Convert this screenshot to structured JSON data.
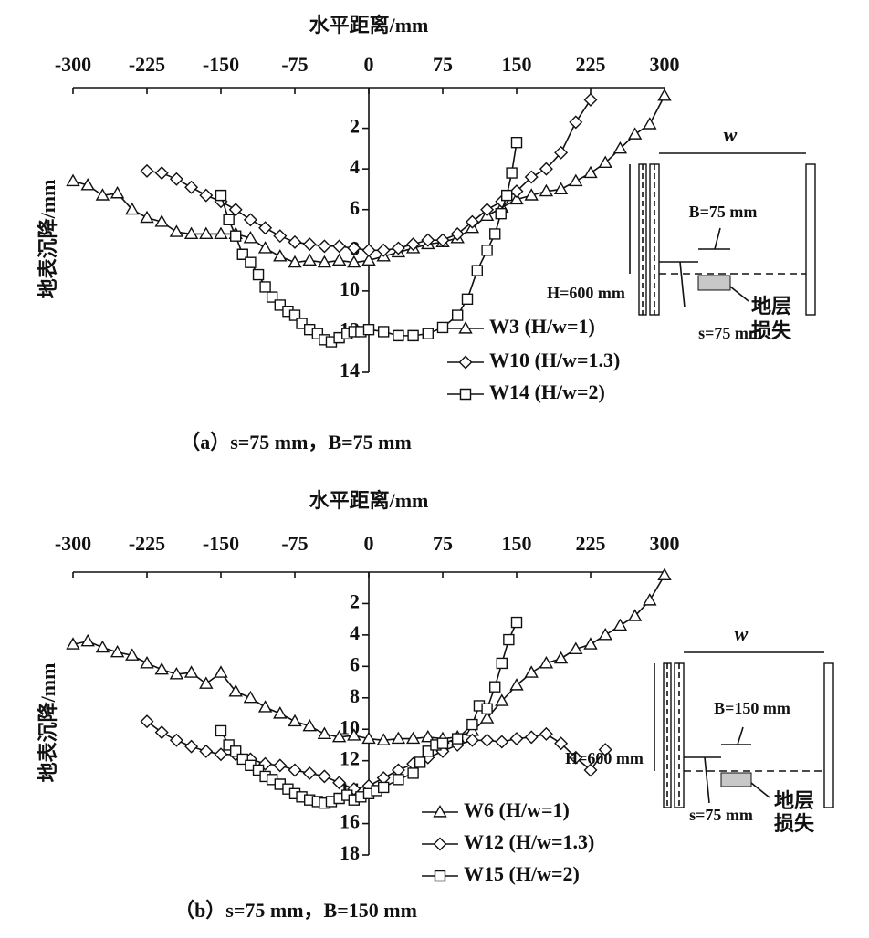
{
  "chart_data": [
    {
      "type": "line",
      "title": "水平距离/mm",
      "ylabel": "地表沉降/mm",
      "caption": "（a）s=75 mm，B=75 mm",
      "xlim": [
        -300,
        300
      ],
      "xticks": [
        -300,
        -225,
        -150,
        -75,
        0,
        75,
        150,
        225,
        300
      ],
      "ylim": [
        0,
        14
      ],
      "yticks": [
        2,
        4,
        6,
        8,
        10,
        12,
        14
      ],
      "y_inverted": true,
      "annotations": [
        "w",
        "B=75 mm",
        "H=600 mm",
        "s=75 mm",
        "地层",
        "损失"
      ],
      "series": [
        {
          "name": "W3 (H/w=1)",
          "color": "#111111",
          "marker": "triangle",
          "x": [
            -300,
            -285,
            -270,
            -255,
            -240,
            -225,
            -210,
            -195,
            -180,
            -165,
            -150,
            -135,
            -120,
            -105,
            -90,
            -75,
            -60,
            -45,
            -30,
            -15,
            0,
            15,
            30,
            45,
            60,
            75,
            90,
            105,
            120,
            135,
            150,
            165,
            180,
            195,
            210,
            225,
            240,
            255,
            270,
            285,
            300
          ],
          "values": [
            4.6,
            4.8,
            5.3,
            5.2,
            6.0,
            6.4,
            6.6,
            7.1,
            7.2,
            7.2,
            7.2,
            7.2,
            7.4,
            7.9,
            8.3,
            8.6,
            8.5,
            8.6,
            8.5,
            8.6,
            8.5,
            8.3,
            8.1,
            7.9,
            7.7,
            7.6,
            7.4,
            6.9,
            6.3,
            5.9,
            5.5,
            5.3,
            5.1,
            5.0,
            4.6,
            4.2,
            3.7,
            3.0,
            2.3,
            1.8,
            0.4
          ]
        },
        {
          "name": "W10 (H/w=1.3)",
          "color": "#111111",
          "marker": "diamond",
          "x": [
            -225,
            -210,
            -195,
            -180,
            -165,
            -150,
            -135,
            -120,
            -105,
            -90,
            -75,
            -60,
            -45,
            -30,
            -15,
            0,
            15,
            30,
            45,
            60,
            75,
            90,
            105,
            120,
            135,
            150,
            165,
            180,
            195,
            210,
            225
          ],
          "values": [
            4.1,
            4.2,
            4.5,
            4.9,
            5.3,
            5.6,
            6.0,
            6.5,
            6.9,
            7.3,
            7.6,
            7.7,
            7.8,
            7.8,
            7.9,
            8.0,
            8.0,
            7.9,
            7.7,
            7.5,
            7.5,
            7.2,
            6.6,
            6.0,
            5.6,
            5.1,
            4.4,
            4.0,
            3.2,
            1.7,
            0.6
          ]
        },
        {
          "name": "W14 (H/w=2)",
          "color": "#111111",
          "marker": "square",
          "x": [
            -150,
            -142,
            -135,
            -128,
            -120,
            -112,
            -105,
            -98,
            -90,
            -82,
            -75,
            -68,
            -60,
            -52,
            -45,
            -38,
            -30,
            -22,
            -15,
            -8,
            0,
            15,
            30,
            45,
            60,
            75,
            90,
            100,
            110,
            120,
            128,
            134,
            140,
            145,
            150
          ],
          "values": [
            5.3,
            6.5,
            7.3,
            8.2,
            8.6,
            9.2,
            9.8,
            10.3,
            10.7,
            11.0,
            11.2,
            11.6,
            11.9,
            12.1,
            12.4,
            12.5,
            12.3,
            12.1,
            12.0,
            12.0,
            11.9,
            12.0,
            12.2,
            12.2,
            12.1,
            11.8,
            11.2,
            10.4,
            9.0,
            8.0,
            7.2,
            6.2,
            5.3,
            4.2,
            2.7
          ]
        }
      ]
    },
    {
      "type": "line",
      "title": "水平距离/mm",
      "ylabel": "地表沉降/mm",
      "caption": "（b）s=75 mm，B=150 mm",
      "xlim": [
        -300,
        300
      ],
      "xticks": [
        -300,
        -225,
        -150,
        -75,
        0,
        75,
        150,
        225,
        300
      ],
      "ylim": [
        0,
        18
      ],
      "yticks": [
        2,
        4,
        6,
        8,
        10,
        12,
        14,
        16,
        18
      ],
      "y_inverted": true,
      "annotations": [
        "w",
        "B=150 mm",
        "H=600 mm",
        "s=75 mm",
        "地层",
        "损失"
      ],
      "series": [
        {
          "name": "W6 (H/w=1)",
          "color": "#111111",
          "marker": "triangle",
          "x": [
            -300,
            -285,
            -270,
            -255,
            -240,
            -225,
            -210,
            -195,
            -180,
            -165,
            -150,
            -135,
            -120,
            -105,
            -90,
            -75,
            -60,
            -45,
            -30,
            -15,
            0,
            15,
            30,
            45,
            60,
            75,
            90,
            105,
            120,
            135,
            150,
            165,
            180,
            195,
            210,
            225,
            240,
            255,
            270,
            285,
            300
          ],
          "values": [
            4.6,
            4.4,
            4.8,
            5.1,
            5.3,
            5.8,
            6.2,
            6.5,
            6.4,
            7.1,
            6.4,
            7.6,
            8.0,
            8.6,
            9.0,
            9.5,
            9.8,
            10.3,
            10.5,
            10.4,
            10.6,
            10.7,
            10.6,
            10.6,
            10.5,
            10.6,
            10.5,
            10.1,
            9.3,
            8.2,
            7.2,
            6.4,
            5.8,
            5.5,
            4.9,
            4.6,
            4.0,
            3.4,
            2.8,
            1.8,
            0.2
          ]
        },
        {
          "name": "W12 (H/w=1.3)",
          "color": "#111111",
          "marker": "diamond",
          "x": [
            -225,
            -210,
            -195,
            -180,
            -165,
            -150,
            -135,
            -120,
            -105,
            -90,
            -75,
            -60,
            -45,
            -30,
            -15,
            0,
            15,
            30,
            45,
            60,
            75,
            90,
            105,
            120,
            135,
            150,
            165,
            180,
            195,
            210,
            225,
            240
          ],
          "values": [
            9.5,
            10.2,
            10.7,
            11.1,
            11.4,
            11.6,
            11.6,
            11.9,
            12.2,
            12.3,
            12.6,
            12.8,
            13.0,
            13.4,
            13.8,
            13.6,
            13.1,
            12.6,
            12.2,
            11.8,
            11.4,
            11.0,
            10.7,
            10.7,
            10.8,
            10.6,
            10.5,
            10.3,
            10.9,
            11.8,
            12.6,
            11.3
          ]
        },
        {
          "name": "W15 (H/w=2)",
          "color": "#111111",
          "marker": "square",
          "x": [
            -150,
            -142,
            -135,
            -128,
            -120,
            -112,
            -105,
            -98,
            -90,
            -82,
            -75,
            -68,
            -60,
            -52,
            -45,
            -38,
            -30,
            -22,
            -15,
            -8,
            0,
            8,
            15,
            30,
            45,
            52,
            60,
            68,
            75,
            90,
            105,
            112,
            120,
            128,
            135,
            142,
            150
          ],
          "values": [
            10.1,
            11.0,
            11.4,
            11.9,
            12.3,
            12.6,
            13.0,
            13.2,
            13.5,
            13.8,
            14.1,
            14.3,
            14.5,
            14.6,
            14.7,
            14.6,
            14.4,
            14.2,
            14.5,
            14.3,
            14.1,
            13.9,
            13.7,
            13.2,
            12.8,
            12.1,
            11.4,
            11.0,
            10.9,
            10.6,
            9.7,
            8.5,
            8.7,
            7.3,
            5.8,
            4.3,
            3.2
          ]
        }
      ]
    }
  ]
}
